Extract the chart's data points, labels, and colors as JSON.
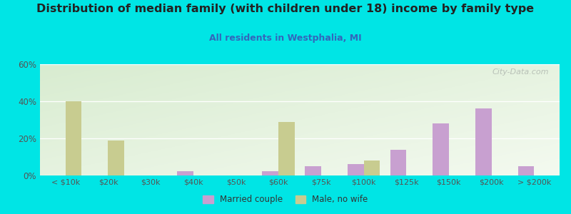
{
  "title": "Distribution of median family (with children under 18) income by family type",
  "subtitle": "All residents in Westphalia, MI",
  "categories": [
    "< $10k",
    "$20k",
    "$30k",
    "$40k",
    "$50k",
    "$60k",
    "$75k",
    "$100k",
    "$125k",
    "$150k",
    "$200k",
    "> $200k"
  ],
  "married_couple": [
    0,
    0,
    0,
    2.5,
    0,
    2.5,
    5,
    6,
    14,
    28,
    36,
    5
  ],
  "male_no_wife": [
    40,
    19,
    0,
    0,
    0,
    29,
    0,
    8,
    0,
    0,
    0,
    0
  ],
  "married_color": "#c8a0d0",
  "male_color": "#c8cc90",
  "background_color": "#00e5e5",
  "grad_color_topleft": "#d8ecd0",
  "grad_color_bottomright": "#f4faf0",
  "ylim": [
    0,
    60
  ],
  "yticks": [
    0,
    20,
    40,
    60
  ],
  "bar_width": 0.38,
  "watermark": "City-Data.com",
  "title_fontsize": 11.5,
  "subtitle_fontsize": 9,
  "tick_fontsize": 8,
  "ytick_fontsize": 8.5
}
